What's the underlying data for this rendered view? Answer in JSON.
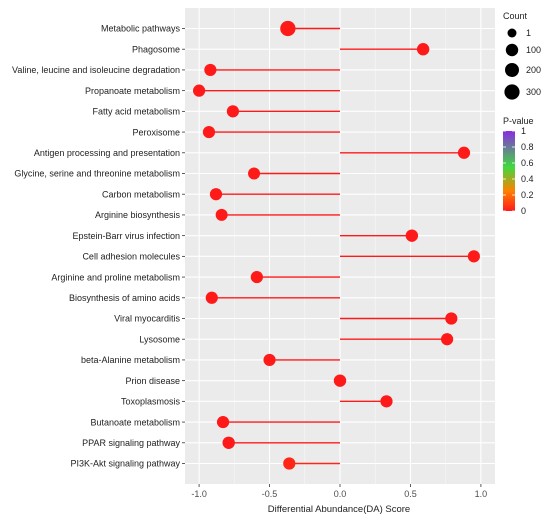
{
  "chart_data": {
    "type": "lollipop",
    "xlabel": "Differential Abundance(DA) Score",
    "ylabel": "",
    "xlim": [
      -1.1,
      1.1
    ],
    "x_ticks": [
      -1.0,
      -0.5,
      0.0,
      0.5,
      1.0
    ],
    "x_tick_labels": [
      "-1.0",
      "-0.5",
      "0.0",
      "0.5",
      "1.0"
    ],
    "grid": true,
    "legend_position": "right",
    "categories": [
      {
        "name": "Metabolic pathways",
        "score": -0.37,
        "count": 310,
        "pvalue": 0.0
      },
      {
        "name": "Phagosome",
        "score": 0.59,
        "count": 100,
        "pvalue": 0.0
      },
      {
        "name": "Valine, leucine and isoleucine degradation",
        "score": -0.92,
        "count": 90,
        "pvalue": 0.0
      },
      {
        "name": "Propanoate metabolism",
        "score": -1.0,
        "count": 90,
        "pvalue": 0.0
      },
      {
        "name": "Fatty acid metabolism",
        "score": -0.76,
        "count": 90,
        "pvalue": 0.0
      },
      {
        "name": "Peroxisome",
        "score": -0.93,
        "count": 90,
        "pvalue": 0.0
      },
      {
        "name": "Antigen processing and presentation",
        "score": 0.88,
        "count": 90,
        "pvalue": 0.0
      },
      {
        "name": "Glycine, serine and threonine metabolism",
        "score": -0.61,
        "count": 80,
        "pvalue": 0.0
      },
      {
        "name": "Carbon metabolism",
        "score": -0.88,
        "count": 90,
        "pvalue": 0.0
      },
      {
        "name": "Arginine biosynthesis",
        "score": -0.84,
        "count": 80,
        "pvalue": 0.0
      },
      {
        "name": "Epstein-Barr virus infection",
        "score": 0.51,
        "count": 100,
        "pvalue": 0.0
      },
      {
        "name": "Cell adhesion molecules",
        "score": 0.95,
        "count": 90,
        "pvalue": 0.0
      },
      {
        "name": "Arginine and proline metabolism",
        "score": -0.59,
        "count": 90,
        "pvalue": 0.0
      },
      {
        "name": "Biosynthesis of amino acids",
        "score": -0.91,
        "count": 90,
        "pvalue": 0.0
      },
      {
        "name": "Viral myocarditis",
        "score": 0.79,
        "count": 90,
        "pvalue": 0.0
      },
      {
        "name": "Lysosome",
        "score": 0.76,
        "count": 90,
        "pvalue": 0.0
      },
      {
        "name": "beta-Alanine metabolism",
        "score": -0.5,
        "count": 90,
        "pvalue": 0.0
      },
      {
        "name": "Prion disease",
        "score": 0.0,
        "count": 100,
        "pvalue": 0.0
      },
      {
        "name": "Toxoplasmosis",
        "score": 0.33,
        "count": 90,
        "pvalue": 0.0
      },
      {
        "name": "Butanoate metabolism",
        "score": -0.83,
        "count": 90,
        "pvalue": 0.0
      },
      {
        "name": "PPAR signaling pathway",
        "score": -0.79,
        "count": 100,
        "pvalue": 0.0
      },
      {
        "name": "PI3K-Akt signaling pathway",
        "score": -0.36,
        "count": 90,
        "pvalue": 0.05
      }
    ],
    "size_legend": {
      "title": "Count",
      "values": [
        1,
        100,
        200,
        300
      ],
      "labels": [
        "1",
        "100",
        "200",
        "300"
      ]
    },
    "color_legend": {
      "title": "P-value",
      "range": [
        0,
        1
      ],
      "ticks": [
        0,
        0.2,
        0.4,
        0.6,
        0.8,
        1
      ],
      "tick_labels": [
        "0",
        "0.2",
        "0.4",
        "0.6",
        "0.8",
        "1"
      ],
      "colors": [
        "#ff1a1a",
        "#ff8000",
        "#40d93f",
        "#8a2be2"
      ]
    },
    "colors": {
      "panel_background": "#ebebeb",
      "grid": "#ffffff",
      "axis_text": "#4d4d4d"
    }
  }
}
